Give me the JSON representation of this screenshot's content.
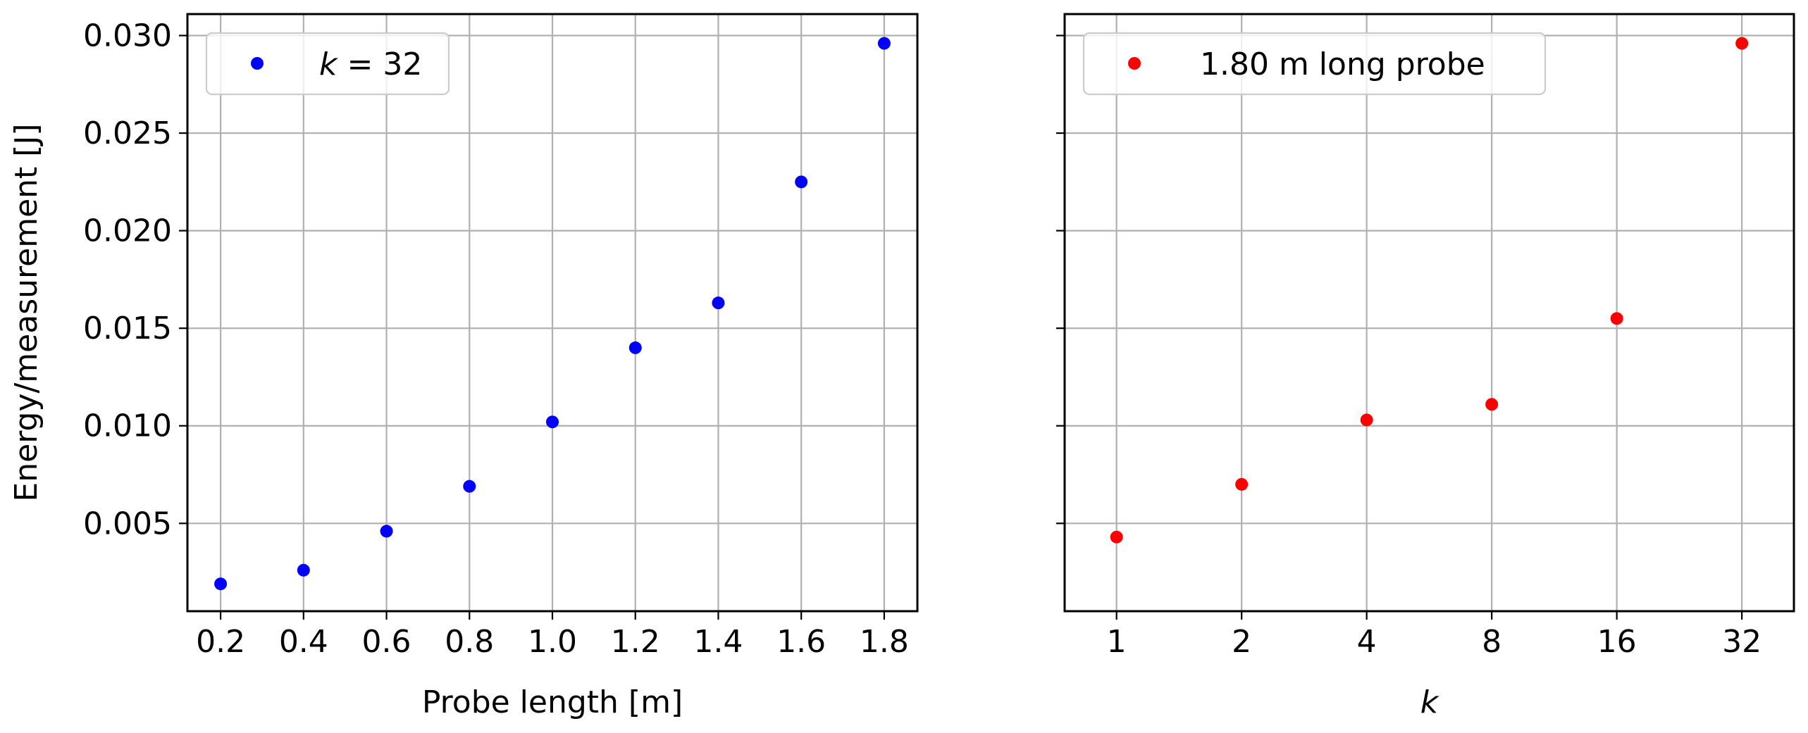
{
  "chart_data": [
    {
      "type": "scatter",
      "xlabel": "Probe length [m]",
      "ylabel": "Energy/measurement [J]",
      "xlim": [
        0.12,
        1.88
      ],
      "ylim": [
        0.0005,
        0.0311
      ],
      "x_ticks": [
        "0.2",
        "0.4",
        "0.6",
        "0.8",
        "1.0",
        "1.2",
        "1.4",
        "1.6",
        "1.8"
      ],
      "y_ticks": [
        "0.005",
        "0.010",
        "0.015",
        "0.020",
        "0.025",
        "0.030"
      ],
      "grid": true,
      "legend_position": "upper-left",
      "series": [
        {
          "name": "k = 32",
          "color": "#0000ff",
          "x": [
            0.2,
            0.4,
            0.6,
            0.8,
            1.0,
            1.2,
            1.4,
            1.6,
            1.8
          ],
          "y": [
            0.0019,
            0.0026,
            0.0046,
            0.0069,
            0.0102,
            0.014,
            0.0163,
            0.0225,
            0.0296
          ]
        }
      ]
    },
    {
      "type": "scatter",
      "xlabel": "k",
      "ylabel": "",
      "x_scale": "log2",
      "xlim": [
        0.75,
        42.7
      ],
      "ylim": [
        0.0005,
        0.0311
      ],
      "x_ticks": [
        "1",
        "2",
        "4",
        "8",
        "16",
        "32"
      ],
      "y_ticks": [
        "0.005",
        "0.010",
        "0.015",
        "0.020",
        "0.025",
        "0.030"
      ],
      "y_tick_labels_visible": false,
      "grid": true,
      "legend_position": "upper-left",
      "series": [
        {
          "name": "1.80 m long probe",
          "color": "#ff0000",
          "x": [
            1,
            2,
            4,
            8,
            16,
            32
          ],
          "y": [
            0.0043,
            0.007,
            0.0103,
            0.0111,
            0.0155,
            0.0296
          ]
        }
      ]
    }
  ]
}
